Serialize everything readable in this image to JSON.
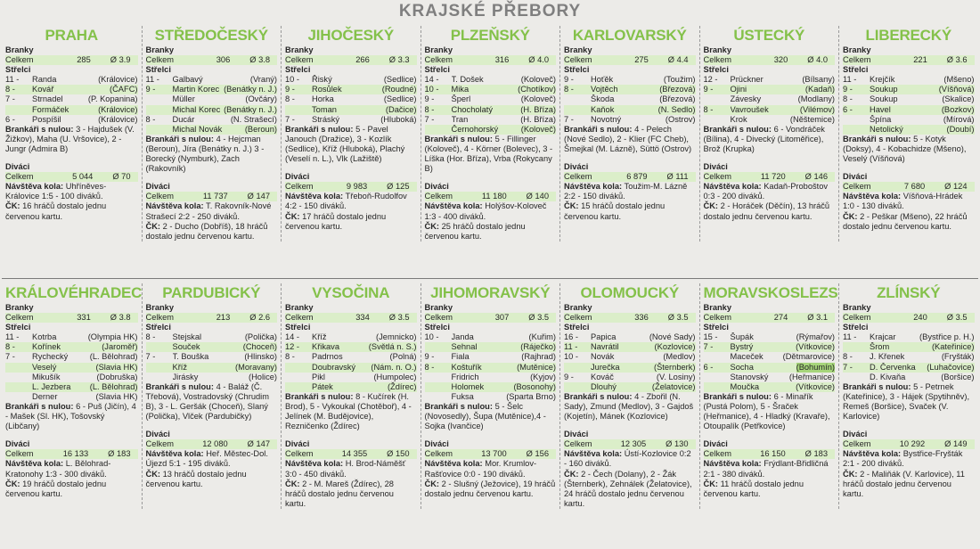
{
  "page_title": "KRAJSKÉ PŘEBORY",
  "labels": {
    "branky": "Branky",
    "celkem": "Celkem",
    "strelci": "Střelci",
    "divaci": "Diváci",
    "nulou": "Brankáři s nulou:",
    "navsteva": "Návštěva kola:",
    "ck": "ČK:"
  },
  "regions": [
    {
      "name": "PRAHA",
      "goals": "285",
      "goals_avg": "Ø 3.9",
      "scorers": [
        {
          "n": "11 -",
          "p": "Randa",
          "c": "(Královice)"
        },
        {
          "n": "8 -",
          "p": "Kovář",
          "c": "(ČAFC)"
        },
        {
          "n": "7 -",
          "p": "Strnadel",
          "c": "(P. Kopanina)"
        },
        {
          "n": "",
          "p": "Formáček",
          "c": "(Královice)"
        },
        {
          "n": "6 -",
          "p": "Pospíšil",
          "c": "(Královice)"
        }
      ],
      "shutouts": "3 - Hajdušek (V. Žižkov), Maha (U. Vršovice), 2 - Jungr (Admira B)",
      "attendance": "5 044",
      "attendance_avg": "Ø 70",
      "round": "Uhříněves-Královice 1:5 - 100 diváků.",
      "ck": "16 hráčů dostalo jednu červenou kartu."
    },
    {
      "name": "STŘEDOČESKÝ",
      "goals": "306",
      "goals_avg": "Ø 3.8",
      "scorers": [
        {
          "n": "11 -",
          "p": "Galbavý",
          "c": "(Vraný)"
        },
        {
          "n": "9 -",
          "p": "Martin Korec",
          "c": "(Benátky n. J.)"
        },
        {
          "n": "",
          "p": "Müller",
          "c": "(Ovčáry)"
        },
        {
          "n": "",
          "p": "Michal Korec",
          "c": "(Benátky n. J.)"
        },
        {
          "n": "8 -",
          "p": "Ducár",
          "c": "(N. Strašecí)"
        },
        {
          "n": "",
          "p": "Michal Novák",
          "c": "(Beroun)"
        }
      ],
      "shutouts": "4 - Hejcman (Beroun), Jíra (Benátky n. J.) 3 - Borecký (Nymburk), Zach (Rakovník)",
      "attendance": "11 737",
      "attendance_avg": "Ø 147",
      "round": "T. Rakovník-Nové Strašecí 2:2 - 250 diváků.",
      "ck": "2 - Ducho (Dobříš), 18 hráčů dostalo jednu červenou kartu."
    },
    {
      "name": "JIHOČESKÝ",
      "goals": "266",
      "goals_avg": "Ø 3.3",
      "scorers": [
        {
          "n": "10 -",
          "p": "Řiský",
          "c": "(Sedlice)"
        },
        {
          "n": "9 -",
          "p": "Rosůlek",
          "c": "(Roudné)"
        },
        {
          "n": "8 -",
          "p": "Horka",
          "c": "(Sedlice)"
        },
        {
          "n": "",
          "p": "Toman",
          "c": "(Dačice)"
        },
        {
          "n": "7 -",
          "p": "Stráský",
          "c": "(Hluboká)"
        }
      ],
      "shutouts": "5 - Pavel Janouch (Dražice), 3 - Kozlík (Sedlice), Kříž (Hluboká), Plachý (Veselí n. L.), Vlk (Lažiště)",
      "attendance": "9 983",
      "attendance_avg": "Ø 125",
      "round": "Třeboň-Rudolfov 4:2 - 150 diváků.",
      "ck": "17 hráčů dostalo jednu červenou kartu."
    },
    {
      "name": "PLZEŇSKÝ",
      "goals": "316",
      "goals_avg": "Ø 4.0",
      "scorers": [
        {
          "n": "14 -",
          "p": "T. Došek",
          "c": "(Kolovеč)"
        },
        {
          "n": "10 -",
          "p": "Mika",
          "c": "(Chotíkov)"
        },
        {
          "n": "9 -",
          "p": "Šperl",
          "c": "(Kolovеč)"
        },
        {
          "n": "8 -",
          "p": "Chocholatý",
          "c": "(H. Bříza)"
        },
        {
          "n": "7 -",
          "p": "Tran",
          "c": "(H. Bříza)"
        },
        {
          "n": "",
          "p": "Černohorský",
          "c": "(Kolovеč)"
        }
      ],
      "shutouts": "5 - Fillinger (Kolovеč), 4 - Körner (Bolevec), 3 - Líška (Hor. Bříza), Vrba (Rokycany B)",
      "attendance": "11 180",
      "attendance_avg": "Ø 140",
      "round": "Holýšov-Kolovеč 1:3 - 400 diváků.",
      "ck": "25 hráčů dostalo jednu červenou kartu."
    },
    {
      "name": "KARLOVARSKÝ",
      "goals": "275",
      "goals_avg": "Ø 4.4",
      "scorers": [
        {
          "n": "9 -",
          "p": "Hoťěk",
          "c": "(Toužim)"
        },
        {
          "n": "8 -",
          "p": "Vojtěch",
          "c": "(Březová)"
        },
        {
          "n": "",
          "p": "Škoda",
          "c": "(Březová)"
        },
        {
          "n": "",
          "p": "Kaňok",
          "c": "(N. Sedlo)"
        },
        {
          "n": "7 -",
          "p": "Novotný",
          "c": "(Ostrov)"
        }
      ],
      "shutouts": "4 - Pelech (Nové Sedlo), 2 - Klier (FC Cheb), Šmejkal (M. Lázně), Süttö (Ostrov)",
      "attendance": "6 879",
      "attendance_avg": "Ø 111",
      "round": "Toužim-M. Lázně 2:2 - 150 diváků.",
      "ck": "15 hráčů dostalo jednu červenou kartu."
    },
    {
      "name": "ÚSTECKÝ",
      "goals": "320",
      "goals_avg": "Ø 4.0",
      "scorers": [
        {
          "n": "12 -",
          "p": "Prückner",
          "c": "(Bílsany)"
        },
        {
          "n": "9 -",
          "p": "Ojini",
          "c": "(Kadaň)"
        },
        {
          "n": "",
          "p": "Závesky",
          "c": "(Modlany)"
        },
        {
          "n": "8 -",
          "p": "Vavroušek",
          "c": "(Vilémov)"
        },
        {
          "n": "",
          "p": "Krok",
          "c": "(Něštemice)"
        }
      ],
      "shutouts": "6 - Vondráček (Bílina), 4 - Divecký (Litoměřice), Brož (Krupka)",
      "attendance": "11 720",
      "attendance_avg": "Ø 146",
      "round": "Kadaň-Proboštov 0:3 - 200 diváků.",
      "ck": "2 - Horáček (Děčín), 13 hráčů dostalo jednu červenou kartu."
    },
    {
      "name": "LIBERECKÝ",
      "goals": "221",
      "goals_avg": "Ø 3.6",
      "scorers": [
        {
          "n": "11 -",
          "p": "Krejčík",
          "c": "(Mšeno)"
        },
        {
          "n": "9 -",
          "p": "Soukup",
          "c": "(Víšňová)"
        },
        {
          "n": "8 -",
          "p": "Soukup",
          "c": "(Skalice)"
        },
        {
          "n": "6 -",
          "p": "Havel",
          "c": "(Bozkov)"
        },
        {
          "n": "",
          "p": "Špína",
          "c": "(Mírová)"
        },
        {
          "n": "",
          "p": "Netolický",
          "c": "(Doubí)"
        }
      ],
      "shutouts": "5 - Kotyk (Doksy), 4 - Kobachidze (Mšeno), Veselý (Víšňová)",
      "attendance": "7 680",
      "attendance_avg": "Ø 124",
      "round": "Víšňová-Hrádek 1:0 - 130 diváků.",
      "ck": "2 - Peškar (Mšeno), 22 hráčů dostalo jednu červenou kartu."
    },
    {
      "name": "KRÁLOVÉHRADECKÝ",
      "goals": "331",
      "goals_avg": "Ø 3.8",
      "scorers": [
        {
          "n": "11 -",
          "p": "Kotrba",
          "c": "(Olympia HK)"
        },
        {
          "n": "8 -",
          "p": "Kořínek",
          "c": "(Jaroměř)"
        },
        {
          "n": "7 -",
          "p": "Rychecký",
          "c": "(L. Bělohrad)"
        },
        {
          "n": "",
          "p": "Veselý",
          "c": "(Slavia HK)"
        },
        {
          "n": "",
          "p": "Mikušík",
          "c": "(Dobruška)"
        },
        {
          "n": "",
          "p": "L. Jezbera",
          "c": "(L. Bělohrad)"
        },
        {
          "n": "",
          "p": "Derner",
          "c": "(Slavia HK)"
        }
      ],
      "shutouts": "6 - Puš (Jičín), 4 - Mašek (Sl. HK), Tošovský (Libčany)",
      "attendance": "16 133",
      "attendance_avg": "Ø 183",
      "round": "L. Bělohrad-Kratonohy 1:3 - 300 diváků.",
      "ck": "19 hráčů dostalo jednu červenou kartu."
    },
    {
      "name": "PARDUBICKÝ",
      "goals": "213",
      "goals_avg": "Ø 2.6",
      "scorers": [
        {
          "n": "8 -",
          "p": "Stejskal",
          "c": "(Polička)"
        },
        {
          "n": "",
          "p": "Souček",
          "c": "(Choceň)"
        },
        {
          "n": "7 -",
          "p": "T. Bouška",
          "c": "(Hlinsko)"
        },
        {
          "n": "",
          "p": "Kříž",
          "c": "(Moravany)"
        },
        {
          "n": "",
          "p": "Jirásky",
          "c": "(Holice)"
        }
      ],
      "shutouts": "4 - Baláž (Č. Třebová), Vostradovský (Chrudim B), 3 - L. Geršák (Choceň), Slaný (Polička), Vlček (Pardubičky)",
      "attendance": "12 080",
      "attendance_avg": "Ø 147",
      "round": "Heř. Městec-Dol. Újezd 5:1 - 195 diváků.",
      "ck": "13 hráčů dostalo jednu červenou kartu."
    },
    {
      "name": "VYSOČINA",
      "goals": "334",
      "goals_avg": "Ø 3.5",
      "scorers": [
        {
          "n": "14 -",
          "p": "Kříž",
          "c": "(Jemnicko)"
        },
        {
          "n": "12 -",
          "p": "Křikava",
          "c": "(Světlá n. S.)"
        },
        {
          "n": "8 -",
          "p": "Padrnos",
          "c": "(Polná)"
        },
        {
          "n": "",
          "p": "Doubravský",
          "c": "(Nám. n. O.)"
        },
        {
          "n": "",
          "p": "Pikl",
          "c": "(Humpolec)"
        },
        {
          "n": "",
          "p": "Pátek",
          "c": "(Ždírec)"
        }
      ],
      "shutouts": "8 - Kučírek (H. Brod), 5 - Vykoukal (Chotěboř), 4 - Jelínek (M. Budějovice), Rezničenko (Ždírec)",
      "attendance": "14 355",
      "attendance_avg": "Ø 150",
      "round": "H. Brod-Náměšť 3:0 - 450 diváků.",
      "ck": "2 - M. Mareš (Ždírec), 28 hráčů dostalo jednu červenou kartu."
    },
    {
      "name": "JIHOMORAVSKÝ",
      "goals": "307",
      "goals_avg": "Ø 3.5",
      "scorers": [
        {
          "n": "10 -",
          "p": "Janda",
          "c": "(Kuřim)"
        },
        {
          "n": "",
          "p": "Sehnal",
          "c": "(Ráječko)"
        },
        {
          "n": "9 -",
          "p": "Fiala",
          "c": "(Rajhrad)"
        },
        {
          "n": "8 -",
          "p": "Koštuřík",
          "c": "(Mutěnice)"
        },
        {
          "n": "",
          "p": "Fridrich",
          "c": "(Kyjov)"
        },
        {
          "n": "",
          "p": "Holomek",
          "c": "(Bosonohy)"
        },
        {
          "n": "",
          "p": "Fuksa",
          "c": "(Sparta Brno)"
        }
      ],
      "shutouts": "5 - Šelc (Novosedly), Šupa (Mutěnice),4 - Sojka (Ivančice)",
      "attendance": "13 700",
      "attendance_avg": "Ø 156",
      "round": "Mor. Krumlov-Rašťovice 0:0 - 190 diváků.",
      "ck": "2 - Slušný (Ježovice), 19 hráčů dostalo jednu červenou kartu."
    },
    {
      "name": "OLOMOUCKÝ",
      "goals": "336",
      "goals_avg": "Ø 3.5",
      "scorers": [
        {
          "n": "16 -",
          "p": "Papica",
          "c": "(Nové Sady)"
        },
        {
          "n": "11 -",
          "p": "Navrátil",
          "c": "(Kozlovice)"
        },
        {
          "n": "10 -",
          "p": "Novák",
          "c": "(Medlov)"
        },
        {
          "n": "",
          "p": "Jurečka",
          "c": "(Šternberk)"
        },
        {
          "n": "9 -",
          "p": "Kováč",
          "c": "(V. Losiny)"
        },
        {
          "n": "",
          "p": "Dlouhý",
          "c": "(Želatovice)"
        }
      ],
      "shutouts": "4 - Zbořil (N. Sady), Zmund (Medlov), 3 - Gajdoš (Kojetín), Mánek (Kozlovice)",
      "attendance": "12 305",
      "attendance_avg": "Ø 130",
      "round": "Ústí-Kozlovice 0:2 - 160 diváků.",
      "ck": "2 - Čech (Dolany), 2 - Žák (Šternberk), Zehnálek (Želatovice), 24 hráčů dostalo jednu červenou kartu."
    },
    {
      "name": "MORAVSKOSLEZSKÝ",
      "goals": "274",
      "goals_avg": "Ø 3.1",
      "scorers": [
        {
          "n": "15 -",
          "p": "Šupák",
          "c": "(Rýmařov)"
        },
        {
          "n": "7 -",
          "p": "Bystrý",
          "c": "(Vítkovice)"
        },
        {
          "n": "",
          "p": "Maceček",
          "c": "(Dětmarovice)"
        },
        {
          "n": "6 -",
          "p": "Socha",
          "c": "(Bohumín)",
          "hl": true
        },
        {
          "n": "",
          "p": "Stanovský",
          "c": "(Heřmanice)"
        },
        {
          "n": "",
          "p": "Moučka",
          "c": "(Vítkovice)"
        }
      ],
      "shutouts": "6 - Minařík (Pustá Polom), 5 - Šraček (Heřmanice), 4 - Hladký (Kravaře), Otoupalík (Petřkovice)",
      "attendance": "16 150",
      "attendance_avg": "Ø 183",
      "round": "Frýdlant-Břidličná 2:1 - 380 diváků.",
      "ck": "11 hráčů dostalo jednu červenou kartu."
    },
    {
      "name": "ZLÍNSKÝ",
      "goals": "240",
      "goals_avg": "Ø 3.5",
      "scorers": [
        {
          "n": "11 -",
          "p": "Krajcar",
          "c": "(Bystřice p. H.)"
        },
        {
          "n": "",
          "p": "Šrom",
          "c": "(Kateřinice)"
        },
        {
          "n": "8 -",
          "p": "J. Křenek",
          "c": "(Fryšták)"
        },
        {
          "n": "7 -",
          "p": "D. Červenka",
          "c": "(Luhačovice)"
        },
        {
          "n": "",
          "p": "D. Kivaňa",
          "c": "(Boršice)"
        }
      ],
      "shutouts": "5 - Petrnek (Kateřinice), 3 - Hájek (Spytihněv), Remeš (Boršice), Svaček (V. Karlovice)",
      "attendance": "10 292",
      "attendance_avg": "Ø 149",
      "round": "Bystřice-Fryšták 2:1 - 200 diváků.",
      "ck": "2 - Maliňák (V. Karlovice), 11 hráčů dostalo jednu červenou kartu."
    }
  ]
}
